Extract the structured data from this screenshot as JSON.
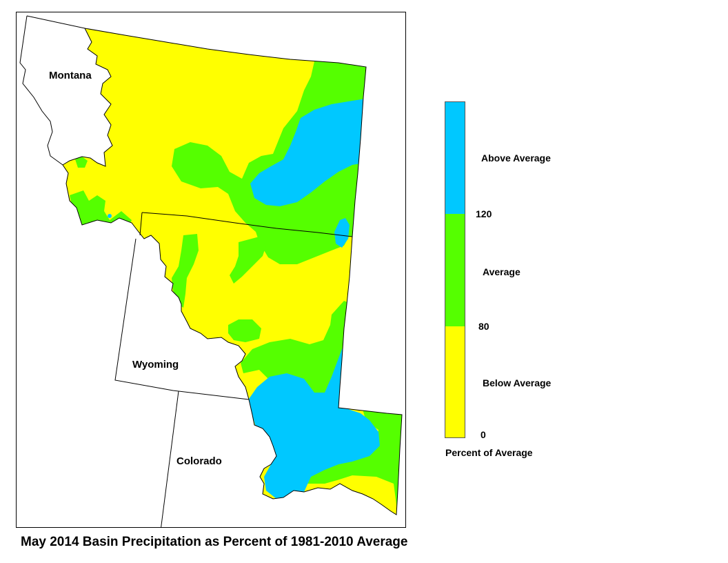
{
  "map": {
    "title": "May 2014 Basin Precipitation as Percent of 1981-2010 Average",
    "states": [
      {
        "name": "Montana"
      },
      {
        "name": "Wyoming"
      },
      {
        "name": "Colorado"
      }
    ]
  },
  "legend": {
    "title": "Percent of Average",
    "categories": [
      {
        "label": "Above Average",
        "color": "#00c8ff"
      },
      {
        "label": "Average",
        "color": "#55ff00"
      },
      {
        "label": "Below Average",
        "color": "#ffff00"
      }
    ],
    "breaks": [
      "120",
      "80",
      "0"
    ]
  },
  "colors": {
    "above": "#00c8ff",
    "average": "#55ff00",
    "below": "#ffff00",
    "outline": "#000000"
  }
}
